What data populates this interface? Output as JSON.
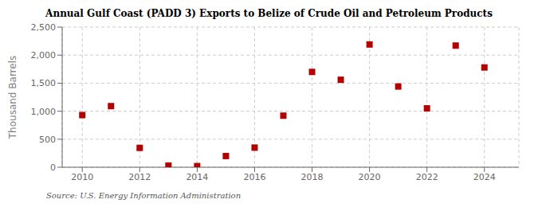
{
  "chart_data": {
    "type": "scatter",
    "title": "Annual Gulf Coast (PADD 3) Exports to Belize of Crude Oil and Petroleum Products",
    "y_label": "Thousand Barrels",
    "annotations": [
      "Source: U.S. Energy Information Administration"
    ],
    "x": [
      2010,
      2011,
      2012,
      2013,
      2014,
      2015,
      2016,
      2017,
      2018,
      2019,
      2020,
      2021,
      2022,
      2023,
      2024
    ],
    "values": [
      930,
      1090,
      345,
      30,
      20,
      200,
      350,
      920,
      1700,
      1560,
      2190,
      1440,
      1050,
      2170,
      1780
    ],
    "color": "#b30000",
    "marker": "square",
    "xlim": [
      2009.3,
      2025.2
    ],
    "xticks": [
      2010,
      2012,
      2014,
      2016,
      2018,
      2020,
      2022,
      2024
    ],
    "ylim": [
      0,
      2500
    ],
    "yticks": [
      0,
      500,
      {
        "value": 1000,
        "label": "1,000"
      },
      {
        "value": 1500,
        "label": "1,500"
      },
      {
        "value": 2000,
        "label": "2,000"
      },
      {
        "value": 2500,
        "label": "2,500"
      }
    ],
    "grid": true
  }
}
